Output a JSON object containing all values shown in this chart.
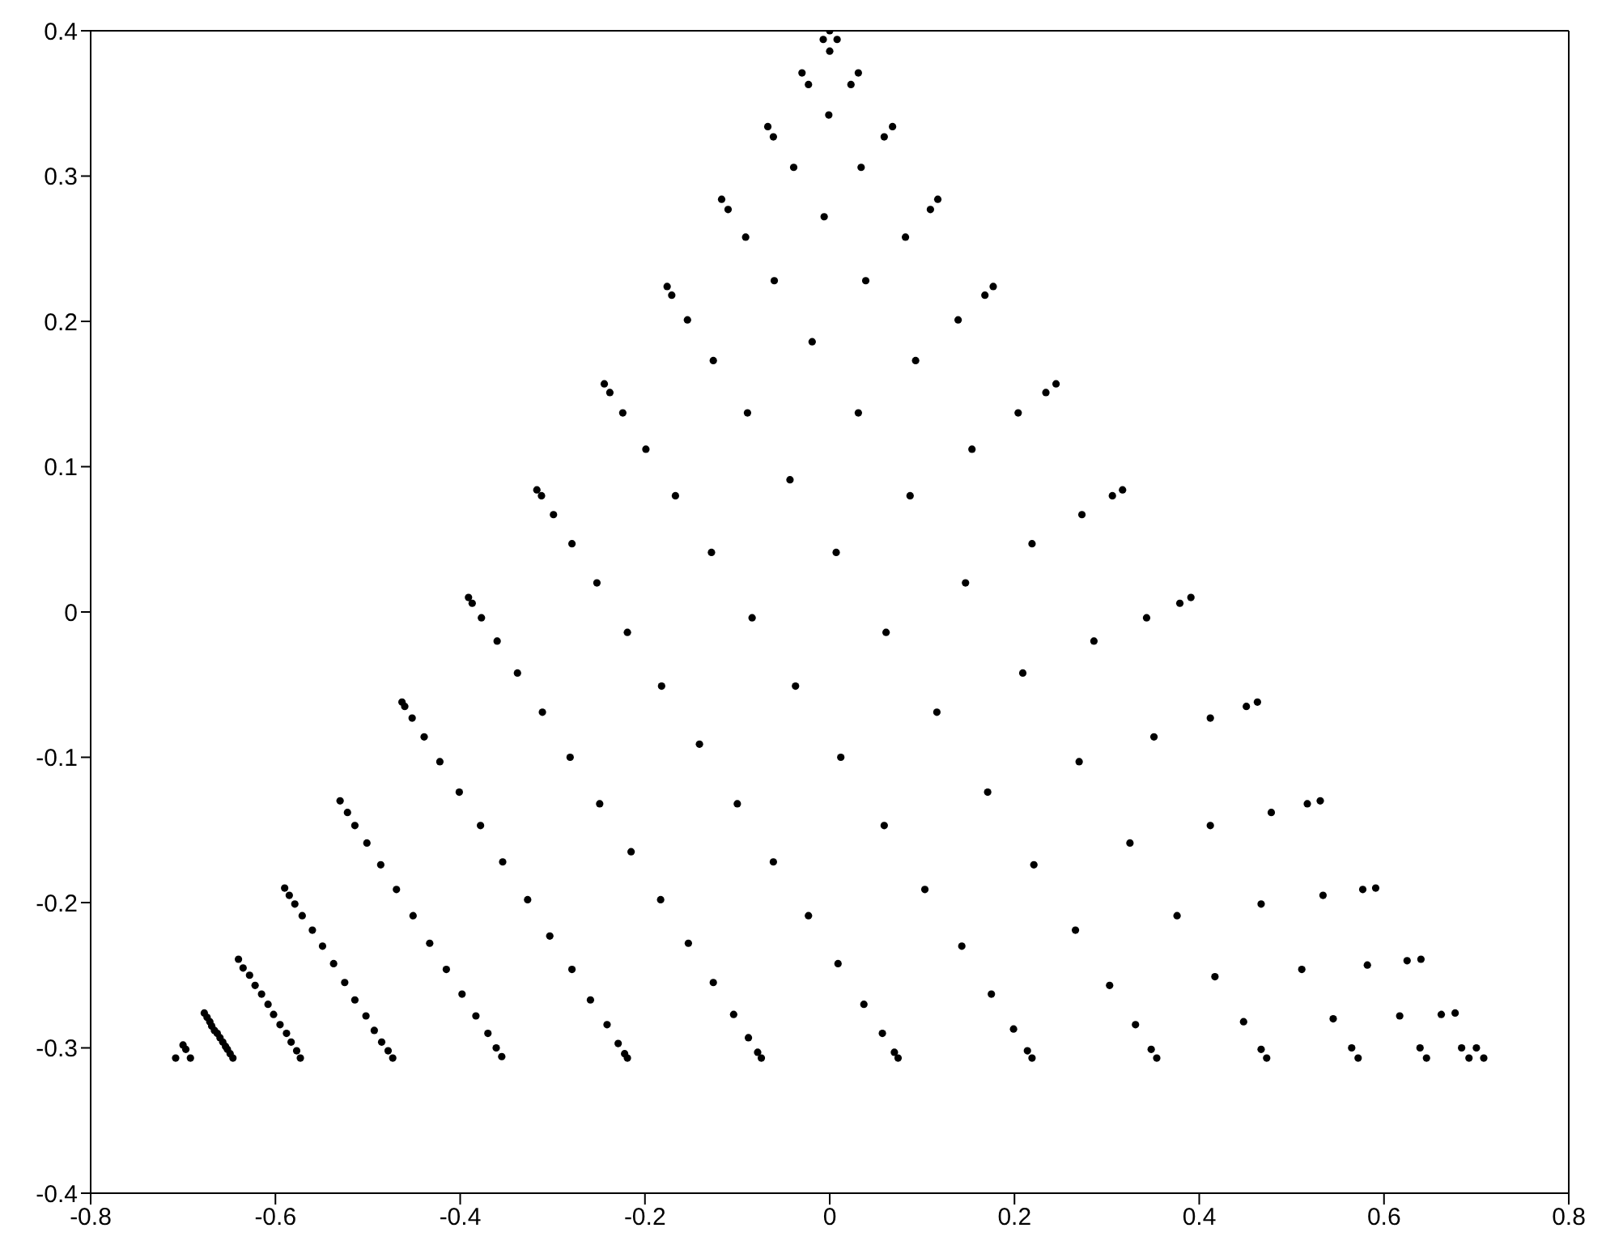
{
  "chart_data": {
    "type": "scatter",
    "color": "#000000",
    "marker": "circle",
    "xlim": [
      -0.8,
      0.8
    ],
    "xticks": [
      -0.8,
      -0.6,
      -0.4,
      -0.2,
      0,
      0.2,
      0.4,
      0.6,
      0.8
    ],
    "ylim": [
      -0.4,
      0.4
    ],
    "yticks": [
      -0.4,
      -0.3,
      -0.2,
      -0.1,
      0,
      0.1,
      0.2,
      0.3,
      0.4
    ],
    "x": [
      0,
      -0.007,
      0.008,
      0.0,
      -0.03,
      0.031,
      -0.023,
      0.023,
      -0.001,
      -0.067,
      -0.061,
      0.059,
      0.068,
      -0.039,
      0.034,
      -0.117,
      -0.11,
      0.109,
      0.117,
      -0.006,
      -0.091,
      0.082,
      -0.06,
      0.039,
      -0.176,
      -0.171,
      0.168,
      0.177,
      -0.154,
      0.139,
      -0.019,
      -0.126,
      0.093,
      -0.244,
      -0.238,
      0.234,
      0.245,
      -0.224,
      -0.089,
      0.031,
      0.204,
      -0.199,
      0.154,
      -0.043,
      -0.167,
      0.087,
      0.273,
      -0.279,
      0.219,
      -0.128,
      0.007,
      -0.252,
      0.147,
      -0.084,
      -0.317,
      -0.312,
      -0.299,
      -0.219,
      -0.182,
      -0.141,
      -0.1,
      -0.061,
      -0.023,
      0.009,
      0.037,
      -0.037,
      0.012,
      -0.391,
      -0.387,
      -0.377,
      -0.36,
      -0.338,
      -0.311,
      -0.281,
      -0.249,
      -0.215,
      -0.183,
      -0.153,
      -0.126,
      -0.104,
      -0.088,
      -0.078,
      -0.074,
      -0.463,
      -0.46,
      -0.452,
      -0.439,
      -0.422,
      -0.401,
      -0.378,
      -0.354,
      -0.327,
      -0.303,
      -0.279,
      -0.259,
      -0.241,
      -0.229,
      -0.222,
      -0.219,
      -0.53,
      -0.522,
      -0.514,
      -0.501,
      -0.486,
      -0.469,
      -0.451,
      -0.433,
      -0.415,
      -0.398,
      -0.383,
      -0.37,
      -0.361,
      -0.355,
      -0.59,
      -0.585,
      -0.579,
      -0.571,
      -0.56,
      -0.549,
      -0.537,
      -0.525,
      -0.514,
      -0.502,
      -0.493,
      -0.485,
      -0.478,
      -0.473,
      -0.64,
      -0.635,
      -0.628,
      -0.622,
      -0.615,
      -0.608,
      -0.602,
      -0.595,
      -0.588,
      -0.583,
      -0.577,
      -0.573,
      -0.677,
      -0.674,
      -0.671,
      -0.669,
      -0.666,
      -0.663,
      -0.66,
      -0.657,
      -0.654,
      -0.652,
      -0.649,
      -0.646,
      -0.708,
      -0.7,
      -0.697,
      -0.692,
      0.306,
      0.317,
      0.379,
      0.391,
      0.343,
      0.286,
      0.209,
      0.116,
      0.061,
      0.351,
      0.27,
      0.171,
      0.059,
      0.325,
      0.221,
      0.103,
      0.376,
      0.266,
      0.143,
      0.303,
      0.175,
      0.331,
      0.199,
      0.057,
      0.348,
      0.354,
      0.214,
      0.219,
      0.07,
      0.074,
      0.412,
      0.451,
      0.463,
      0.517,
      0.531,
      0.478,
      0.412,
      0.534,
      0.577,
      0.591,
      0.467,
      0.511,
      0.582,
      0.625,
      0.64,
      0.417,
      0.545,
      0.617,
      0.662,
      0.677,
      0.448,
      0.467,
      0.473,
      0.565,
      0.572,
      0.639,
      0.646,
      0.684,
      0.7,
      0.692,
      0.708
    ],
    "values": [
      0.4,
      0.394,
      0.394,
      0.386,
      0.371,
      0.371,
      0.363,
      0.363,
      0.342,
      0.334,
      0.327,
      0.327,
      0.334,
      0.306,
      0.306,
      0.284,
      0.277,
      0.277,
      0.284,
      0.272,
      0.258,
      0.258,
      0.228,
      0.228,
      0.224,
      0.218,
      0.218,
      0.224,
      0.201,
      0.201,
      0.186,
      0.173,
      0.173,
      0.157,
      0.151,
      0.151,
      0.157,
      0.137,
      0.137,
      0.137,
      0.137,
      0.112,
      0.112,
      0.091,
      0.08,
      0.08,
      0.067,
      0.047,
      0.047,
      0.041,
      0.041,
      0.02,
      0.02,
      -0.004,
      0.084,
      0.08,
      0.067,
      -0.014,
      -0.051,
      -0.091,
      -0.132,
      -0.172,
      -0.209,
      -0.242,
      -0.27,
      -0.051,
      -0.1,
      0.01,
      0.006,
      -0.004,
      -0.02,
      -0.042,
      -0.069,
      -0.1,
      -0.132,
      -0.165,
      -0.198,
      -0.228,
      -0.255,
      -0.277,
      -0.293,
      -0.303,
      -0.307,
      -0.062,
      -0.065,
      -0.073,
      -0.086,
      -0.103,
      -0.124,
      -0.147,
      -0.172,
      -0.198,
      -0.223,
      -0.246,
      -0.267,
      -0.284,
      -0.297,
      -0.304,
      -0.307,
      -0.13,
      -0.138,
      -0.147,
      -0.159,
      -0.174,
      -0.191,
      -0.209,
      -0.228,
      -0.246,
      -0.263,
      -0.278,
      -0.29,
      -0.3,
      -0.306,
      -0.19,
      -0.195,
      -0.201,
      -0.209,
      -0.219,
      -0.23,
      -0.242,
      -0.255,
      -0.267,
      -0.278,
      -0.288,
      -0.296,
      -0.302,
      -0.307,
      -0.239,
      -0.245,
      -0.25,
      -0.257,
      -0.263,
      -0.27,
      -0.277,
      -0.284,
      -0.29,
      -0.296,
      -0.302,
      -0.307,
      -0.276,
      -0.279,
      -0.282,
      -0.285,
      -0.288,
      -0.29,
      -0.293,
      -0.296,
      -0.299,
      -0.301,
      -0.304,
      -0.307,
      -0.307,
      -0.298,
      -0.301,
      -0.307,
      0.08,
      0.084,
      0.006,
      0.01,
      -0.004,
      -0.02,
      -0.042,
      -0.069,
      -0.014,
      -0.086,
      -0.103,
      -0.124,
      -0.147,
      -0.159,
      -0.174,
      -0.191,
      -0.209,
      -0.219,
      -0.23,
      -0.257,
      -0.263,
      -0.284,
      -0.287,
      -0.29,
      -0.301,
      -0.307,
      -0.302,
      -0.307,
      -0.303,
      -0.307,
      -0.073,
      -0.065,
      -0.062,
      -0.132,
      -0.13,
      -0.138,
      -0.147,
      -0.195,
      -0.191,
      -0.19,
      -0.201,
      -0.246,
      -0.243,
      -0.24,
      -0.239,
      -0.251,
      -0.28,
      -0.278,
      -0.277,
      -0.276,
      -0.282,
      -0.301,
      -0.307,
      -0.3,
      -0.307,
      -0.3,
      -0.307,
      -0.3,
      -0.3,
      -0.307,
      -0.307
    ]
  }
}
